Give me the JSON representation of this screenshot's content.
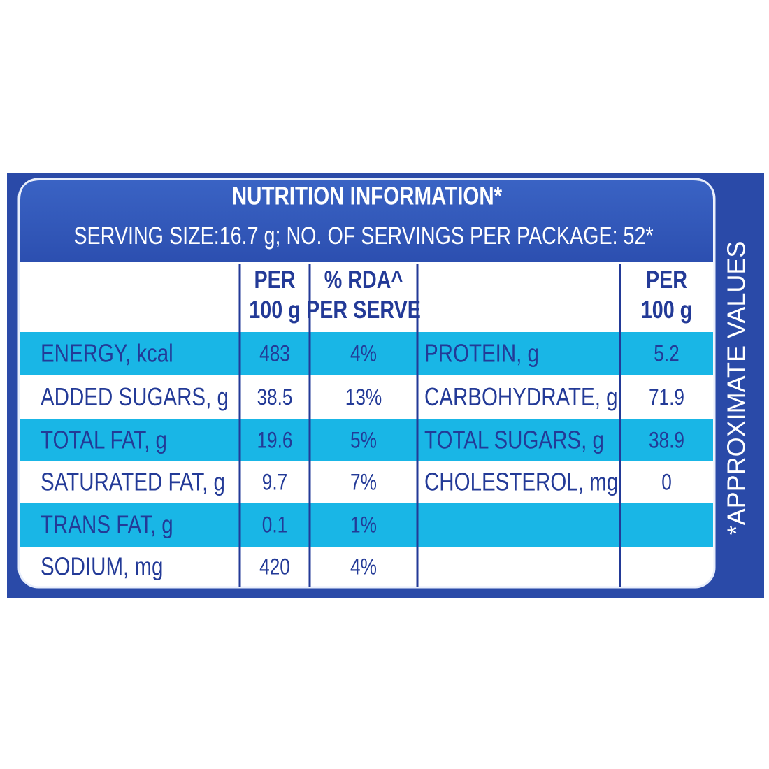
{
  "header": {
    "title": "NUTRITION INFORMATION*",
    "serving": "SERVING SIZE:16.7 g; NO. OF SERVINGS PER PACKAGE: 52*"
  },
  "side_note": "*APPROXIMATE VALUES",
  "table": {
    "left_columns": [
      [
        "PER",
        "100 g"
      ],
      [
        "% RDA^",
        "PER SERVE"
      ]
    ],
    "right_columns": [
      [
        "PER",
        "100 g"
      ]
    ],
    "left_rows": [
      [
        "ENERGY, kcal",
        "483",
        "4%"
      ],
      [
        "ADDED SUGARS, g",
        "38.5",
        "13%"
      ],
      [
        "TOTAL FAT, g",
        "19.6",
        "5%"
      ],
      [
        "SATURATED FAT, g",
        "9.7",
        "7%"
      ],
      [
        "TRANS FAT, g",
        "0.1",
        "1%"
      ],
      [
        "SODIUM, mg",
        "420",
        "4%"
      ]
    ],
    "right_rows": [
      [
        "PROTEIN, g",
        "5.2"
      ],
      [
        "CARBOHYDRATE, g",
        "71.9"
      ],
      [
        "TOTAL SUGARS, g",
        "38.9"
      ],
      [
        "CHOLESTEROL, mg",
        "0"
      ]
    ]
  }
}
